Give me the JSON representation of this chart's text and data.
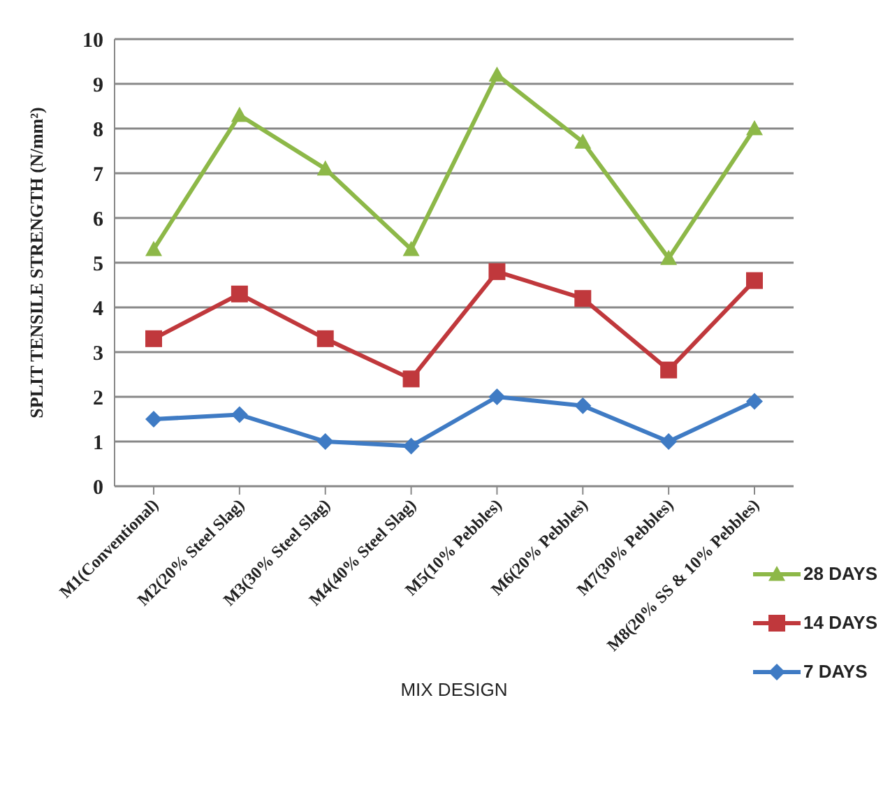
{
  "chart_data": {
    "type": "line",
    "xlabel": "MIX DESIGN",
    "ylabel": "SPLIT TENSILE STRENGTH (N/mm²)",
    "categories": [
      "M1(Conventional)",
      "M2(20% Steel Slag)",
      "M3(30% Steel Slag)",
      "M4(40% Steel Slag)",
      "M5(10% Pebbles)",
      "M6(20% Pebbles)",
      "M7(30% Pebbles)",
      "M8(20% SS & 10% Pebbles)"
    ],
    "series": [
      {
        "name": "28 DAYS",
        "color": "#8db848",
        "marker": "triangle",
        "values": [
          5.3,
          8.3,
          7.1,
          5.3,
          9.2,
          7.7,
          5.1,
          8.0
        ]
      },
      {
        "name": "14 DAYS",
        "color": "#c0383c",
        "marker": "square",
        "values": [
          3.3,
          4.3,
          3.3,
          2.4,
          4.8,
          4.2,
          2.6,
          4.6
        ]
      },
      {
        "name": "7 DAYS",
        "color": "#3f7bc4",
        "marker": "diamond",
        "values": [
          1.5,
          1.6,
          1.0,
          0.9,
          2.0,
          1.8,
          1.0,
          1.9
        ]
      }
    ],
    "ylim": [
      0,
      10
    ],
    "yticks": [
      0,
      1,
      2,
      3,
      4,
      5,
      6,
      7,
      8,
      9,
      10
    ],
    "grid": "y",
    "legend": "bottom right"
  }
}
